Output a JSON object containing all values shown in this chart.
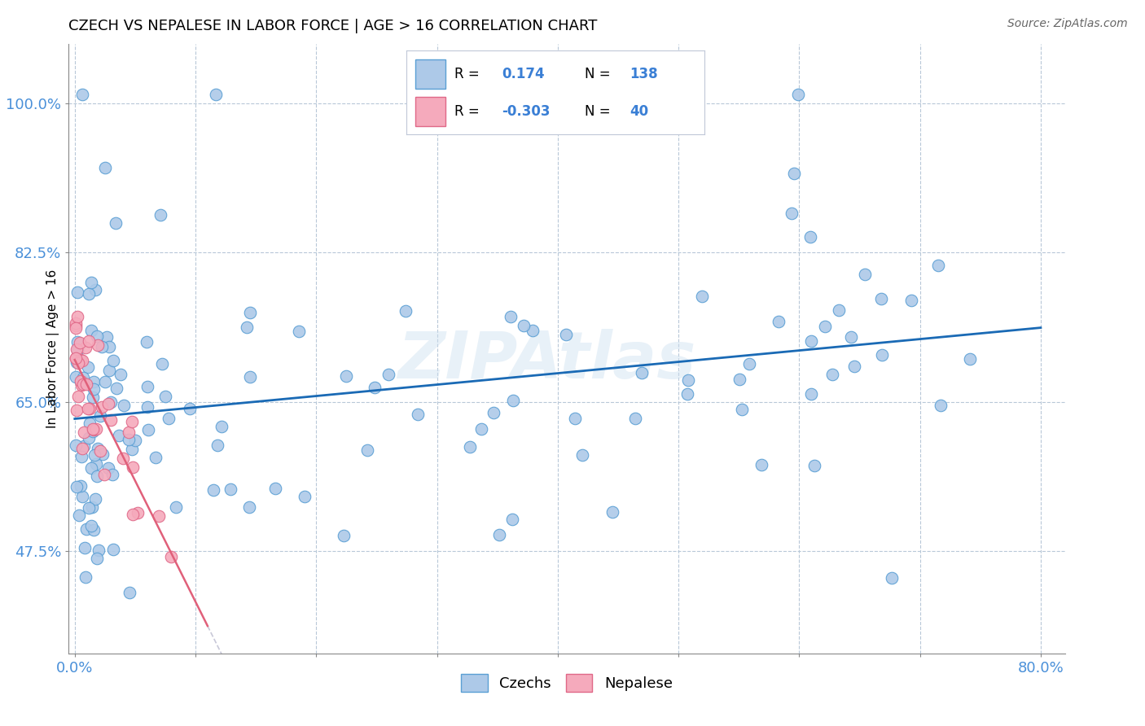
{
  "title": "CZECH VS NEPALESE IN LABOR FORCE | AGE > 16 CORRELATION CHART",
  "source_text": "Source: ZipAtlas.com",
  "ylabel": "In Labor Force | Age > 16",
  "xlim": [
    -0.005,
    0.82
  ],
  "ylim": [
    0.355,
    1.07
  ],
  "x_ticks": [
    0.0,
    0.1,
    0.2,
    0.3,
    0.4,
    0.5,
    0.6,
    0.7,
    0.8
  ],
  "x_tick_labels": [
    "0.0%",
    "",
    "",
    "",
    "",
    "",
    "",
    "",
    "80.0%"
  ],
  "y_ticks": [
    0.475,
    0.65,
    0.825,
    1.0
  ],
  "y_tick_labels": [
    "47.5%",
    "65.0%",
    "82.5%",
    "100.0%"
  ],
  "czech_color": "#adc9e8",
  "czech_edge": "#5a9fd4",
  "nepalese_color": "#f5aabc",
  "nepalese_edge": "#e06888",
  "trend_czech_color": "#1a6ab5",
  "trend_nepalese_color": "#e0607a",
  "trend_nepalese_dash_color": "#c8c8d8",
  "R_czech": 0.174,
  "N_czech": 138,
  "R_nepalese": -0.303,
  "N_nepalese": 40,
  "watermark": "ZIPAtlas",
  "legend_R_color": "#3a7fd5",
  "legend_box_color": "#f0f0f8",
  "legend_box_edge": "#c0c8d8"
}
